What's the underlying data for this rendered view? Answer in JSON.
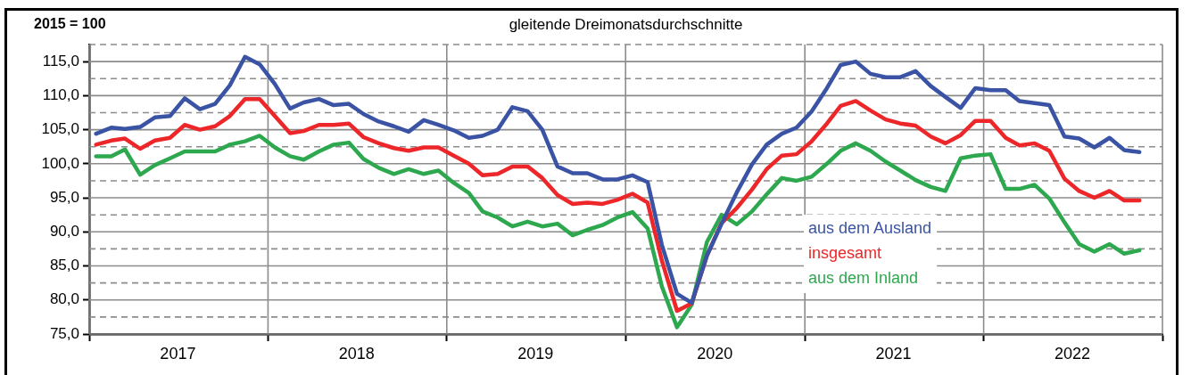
{
  "chart_data": {
    "type": "line",
    "title": "gleitende Dreimonatsdurchschnitte",
    "ylabel": "2015 = 100",
    "x": [
      "2017-01-15",
      "2017-02-15",
      "2017-03-15",
      "2017-04-15",
      "2017-05-15",
      "2017-06-15",
      "2017-07-15",
      "2017-08-15",
      "2017-09-15",
      "2017-10-15",
      "2017-11-15",
      "2017-12-15",
      "2018-01-15",
      "2018-02-15",
      "2018-03-15",
      "2018-04-15",
      "2018-05-15",
      "2018-06-15",
      "2018-07-15",
      "2018-08-15",
      "2018-09-15",
      "2018-10-15",
      "2018-11-15",
      "2018-12-15",
      "2019-01-15",
      "2019-02-15",
      "2019-03-15",
      "2019-04-15",
      "2019-05-15",
      "2019-06-15",
      "2019-07-15",
      "2019-08-15",
      "2019-09-15",
      "2019-10-15",
      "2019-11-15",
      "2019-12-15",
      "2020-01-15",
      "2020-02-15",
      "2020-03-15",
      "2020-04-15",
      "2020-05-15",
      "2020-06-15",
      "2020-07-15",
      "2020-08-15",
      "2020-09-15",
      "2020-10-15",
      "2020-11-15",
      "2020-12-15",
      "2021-01-15",
      "2021-02-15",
      "2021-03-15",
      "2021-04-15",
      "2021-05-15",
      "2021-06-15",
      "2021-07-15",
      "2021-08-15",
      "2021-09-15",
      "2021-10-15",
      "2021-11-15",
      "2021-12-15",
      "2022-01-15",
      "2022-02-15",
      "2022-03-15",
      "2022-04-15",
      "2022-05-15",
      "2022-06-15",
      "2022-07-15",
      "2022-08-15",
      "2022-09-15",
      "2022-10-15",
      "2022-11-15"
    ],
    "series": [
      {
        "name": "aus dem Ausland",
        "color": "#3a53a4",
        "values": [
          104.4,
          105.3,
          105.1,
          105.4,
          106.8,
          107.0,
          109.6,
          108.0,
          108.8,
          111.5,
          115.7,
          114.6,
          111.7,
          108.1,
          109.0,
          109.5,
          108.6,
          108.8,
          107.3,
          106.2,
          105.5,
          104.7,
          106.4,
          105.7,
          104.9,
          103.8,
          104.1,
          105.0,
          108.3,
          107.7,
          105.0,
          99.6,
          98.6,
          98.6,
          97.7,
          97.7,
          98.3,
          97.3,
          88.1,
          80.9,
          79.6,
          86.5,
          91.2,
          95.8,
          99.9,
          102.8,
          104.4,
          105.3,
          107.7,
          111.1,
          114.5,
          115.0,
          113.2,
          112.7,
          112.7,
          113.6,
          111.4,
          109.8,
          108.2,
          111.1,
          110.8,
          110.8,
          109.2,
          108.9,
          108.6,
          104.0,
          103.7,
          102.4,
          103.8,
          102.0,
          101.7
        ]
      },
      {
        "name": "insgesamt",
        "color": "#ec2629",
        "values": [
          102.8,
          103.4,
          103.7,
          102.2,
          103.4,
          103.8,
          105.7,
          105.0,
          105.5,
          107.0,
          109.5,
          109.5,
          107.0,
          104.5,
          104.8,
          105.7,
          105.7,
          105.9,
          103.9,
          103.0,
          102.3,
          101.9,
          102.4,
          102.4,
          101.2,
          100.0,
          98.3,
          98.5,
          99.6,
          99.6,
          97.9,
          95.4,
          94.1,
          94.3,
          94.1,
          94.7,
          95.6,
          94.3,
          85.8,
          78.4,
          79.5,
          86.5,
          91.3,
          93.5,
          96.2,
          99.2,
          101.2,
          101.4,
          103.3,
          105.9,
          108.5,
          109.2,
          107.8,
          106.5,
          105.9,
          105.6,
          104.0,
          103.0,
          104.2,
          106.3,
          106.3,
          103.8,
          102.7,
          103.0,
          101.9,
          97.8,
          96.0,
          95.0,
          96.0,
          94.6,
          94.6
        ]
      },
      {
        "name": "aus dem Inland",
        "color": "#2ea84f",
        "values": [
          101.1,
          101.1,
          102.1,
          98.4,
          99.8,
          100.8,
          101.8,
          101.8,
          101.8,
          102.8,
          103.3,
          104.1,
          102.4,
          101.1,
          100.6,
          101.8,
          102.8,
          103.1,
          100.7,
          99.4,
          98.5,
          99.2,
          98.5,
          99.0,
          97.2,
          95.7,
          93.0,
          92.1,
          90.8,
          91.5,
          90.8,
          91.2,
          89.5,
          90.3,
          91.0,
          92.1,
          92.9,
          90.5,
          82.0,
          76.0,
          79.3,
          88.5,
          92.5,
          91.1,
          93.0,
          95.5,
          97.9,
          97.5,
          98.1,
          100.0,
          101.9,
          103.0,
          101.9,
          100.3,
          99.0,
          97.6,
          96.6,
          96.0,
          100.8,
          101.2,
          101.4,
          96.3,
          96.3,
          96.9,
          94.9,
          91.4,
          88.2,
          87.1,
          88.2,
          86.8,
          87.3
        ]
      }
    ],
    "xlim": [
      "2017-01-01",
      "2023-01-01"
    ],
    "xticks": [
      {
        "value": "2017-01-01",
        "label": null
      },
      {
        "value": "2017-07-01",
        "label": "2017"
      },
      {
        "value": "2018-01-01",
        "label": null
      },
      {
        "value": "2018-07-01",
        "label": "2018"
      },
      {
        "value": "2019-01-01",
        "label": null
      },
      {
        "value": "2019-07-01",
        "label": "2019"
      },
      {
        "value": "2020-01-01",
        "label": null
      },
      {
        "value": "2020-07-01",
        "label": "2020"
      },
      {
        "value": "2021-01-01",
        "label": null
      },
      {
        "value": "2021-07-01",
        "label": "2021"
      },
      {
        "value": "2022-01-01",
        "label": null
      },
      {
        "value": "2022-07-01",
        "label": "2022"
      },
      {
        "value": "2023-01-01",
        "label": null
      }
    ],
    "ylim": [
      75,
      117.5
    ],
    "yticks": [
      {
        "value": 75,
        "label": "75,0"
      },
      {
        "value": 77.5,
        "label": null
      },
      {
        "value": 80,
        "label": "80,0"
      },
      {
        "value": 82.5,
        "label": null
      },
      {
        "value": 85,
        "label": "85,0"
      },
      {
        "value": 87.5,
        "label": null
      },
      {
        "value": 90,
        "label": "90,0"
      },
      {
        "value": 92.5,
        "label": null
      },
      {
        "value": 95,
        "label": "95,0"
      },
      {
        "value": 97.5,
        "label": null
      },
      {
        "value": 100,
        "label": "100,0"
      },
      {
        "value": 102.5,
        "label": null
      },
      {
        "value": 105,
        "label": "105,0"
      },
      {
        "value": 107.5,
        "label": null
      },
      {
        "value": 110,
        "label": "110,0"
      },
      {
        "value": 112.5,
        "label": null
      },
      {
        "value": 115,
        "label": "115,0"
      },
      {
        "value": 117.5,
        "label": null
      }
    ],
    "grid": true,
    "legend": "bottom",
    "marker": "none",
    "line_style": "solid"
  }
}
